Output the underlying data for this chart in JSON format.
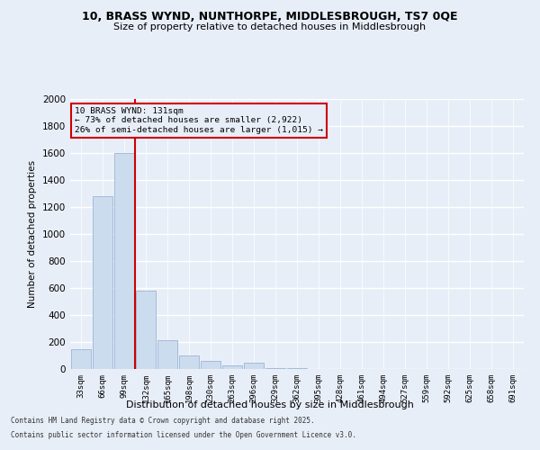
{
  "title_line1": "10, BRASS WYND, NUNTHORPE, MIDDLESBROUGH, TS7 0QE",
  "title_line2": "Size of property relative to detached houses in Middlesbrough",
  "xlabel": "Distribution of detached houses by size in Middlesbrough",
  "ylabel": "Number of detached properties",
  "categories": [
    "33sqm",
    "66sqm",
    "99sqm",
    "132sqm",
    "165sqm",
    "198sqm",
    "230sqm",
    "263sqm",
    "296sqm",
    "329sqm",
    "362sqm",
    "395sqm",
    "428sqm",
    "461sqm",
    "494sqm",
    "527sqm",
    "559sqm",
    "592sqm",
    "625sqm",
    "658sqm",
    "691sqm"
  ],
  "values": [
    150,
    1280,
    1600,
    580,
    215,
    100,
    60,
    30,
    45,
    10,
    5,
    0,
    0,
    0,
    0,
    0,
    0,
    0,
    0,
    0,
    0
  ],
  "bar_color": "#ccdcef",
  "bar_edge_color": "#9ab5d5",
  "marker_line_index": 3,
  "marker_line_color": "#cc0000",
  "annotation_text": "10 BRASS WYND: 131sqm\n← 73% of detached houses are smaller (2,922)\n26% of semi-detached houses are larger (1,015) →",
  "background_color": "#e8eef8",
  "grid_color": "#ffffff",
  "ylim": [
    0,
    2000
  ],
  "yticks": [
    0,
    200,
    400,
    600,
    800,
    1000,
    1200,
    1400,
    1600,
    1800,
    2000
  ],
  "footer_line1": "Contains HM Land Registry data © Crown copyright and database right 2025.",
  "footer_line2": "Contains public sector information licensed under the Open Government Licence v3.0."
}
